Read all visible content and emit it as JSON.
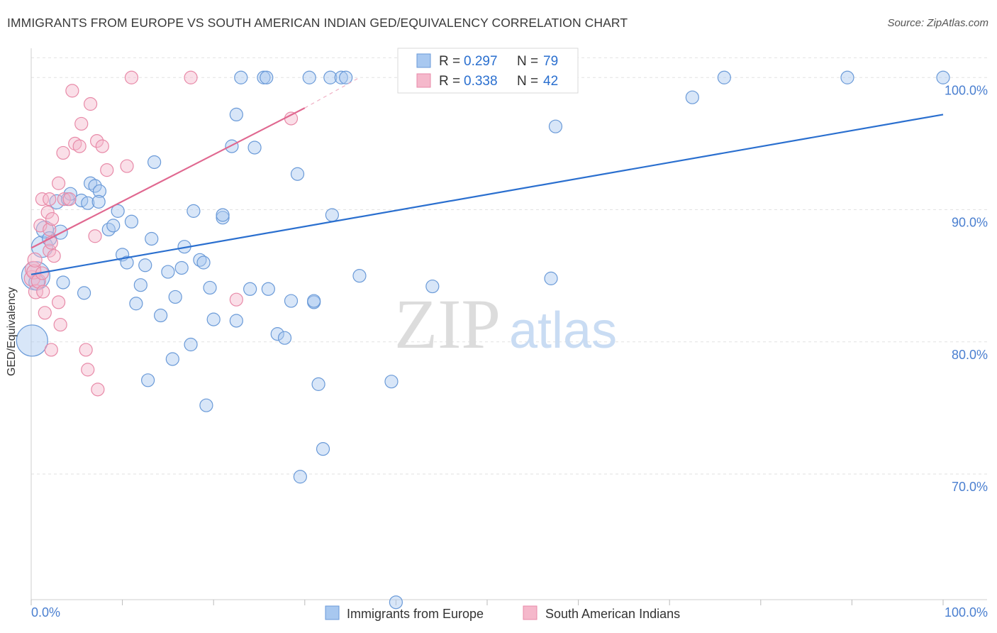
{
  "title": "IMMIGRANTS FROM EUROPE VS SOUTH AMERICAN INDIAN GED/EQUIVALENCY CORRELATION CHART",
  "source": "Source: ZipAtlas.com",
  "watermark": {
    "zip": "ZIP",
    "atlas": "atlas"
  },
  "legend_box": {
    "rows": [
      {
        "r_label": "R =",
        "r_value": "0.297",
        "n_label": "N =",
        "n_value": "79",
        "color": "#a8c8f0"
      },
      {
        "r_label": "R =",
        "r_value": "0.338",
        "n_label": "N =",
        "n_value": "42",
        "color": "#f5b8cb"
      }
    ]
  },
  "colors": {
    "blue_fill": "#a8c8f0",
    "blue_stroke": "#6a9ad8",
    "blue_line": "#2a6fcf",
    "pink_fill": "#f5b8cb",
    "pink_stroke": "#e88aa8",
    "pink_line": "#e06890",
    "axis_text": "#4a7fd0"
  },
  "chart_data": {
    "type": "scatter",
    "title": "IMMIGRANTS FROM EUROPE VS SOUTH AMERICAN INDIAN GED/EQUIVALENCY CORRELATION CHART",
    "xlabel": "",
    "ylabel": "GED/Equivalency",
    "xlim": [
      0,
      100
    ],
    "ylim": [
      60.5,
      102
    ],
    "x_tick_labels": [
      "0.0%",
      "100.0%"
    ],
    "y_ticks": [
      70,
      80,
      90,
      100
    ],
    "y_tick_labels": [
      "70.0%",
      "80.0%",
      "90.0%",
      "100.0%"
    ],
    "grid": true,
    "legend_position": "bottom",
    "series": [
      {
        "name": "Immigrants from Europe",
        "color": "#a8c8f0",
        "trend": {
          "x": [
            0,
            100
          ],
          "y": [
            85.1,
            97.2
          ]
        },
        "points": [
          [
            0.1,
            80.1
          ],
          [
            0.5,
            85.0
          ],
          [
            1.2,
            87.2
          ],
          [
            1.5,
            88.5
          ],
          [
            2.0,
            87.8
          ],
          [
            2.8,
            90.6
          ],
          [
            3.2,
            88.3
          ],
          [
            3.5,
            84.5
          ],
          [
            4.0,
            90.8
          ],
          [
            4.3,
            91.2
          ],
          [
            5.5,
            90.7
          ],
          [
            5.8,
            83.7
          ],
          [
            6.2,
            90.5
          ],
          [
            6.5,
            92.0
          ],
          [
            7.0,
            91.8
          ],
          [
            7.5,
            91.4
          ],
          [
            7.4,
            90.6
          ],
          [
            8.5,
            88.5
          ],
          [
            9.0,
            88.8
          ],
          [
            9.5,
            89.9
          ],
          [
            10.0,
            86.6
          ],
          [
            10.5,
            86.0
          ],
          [
            11.0,
            89.1
          ],
          [
            12.0,
            84.3
          ],
          [
            11.5,
            82.9
          ],
          [
            12.5,
            85.8
          ],
          [
            12.8,
            77.1
          ],
          [
            13.2,
            87.8
          ],
          [
            13.5,
            93.6
          ],
          [
            14.2,
            82.0
          ],
          [
            15.0,
            85.3
          ],
          [
            15.5,
            78.7
          ],
          [
            15.8,
            83.4
          ],
          [
            16.5,
            85.6
          ],
          [
            16.8,
            87.2
          ],
          [
            17.5,
            79.8
          ],
          [
            17.8,
            89.9
          ],
          [
            18.5,
            86.2
          ],
          [
            18.9,
            86.0
          ],
          [
            19.2,
            75.2
          ],
          [
            19.6,
            84.1
          ],
          [
            20.0,
            81.7
          ],
          [
            21.0,
            89.4
          ],
          [
            21.0,
            89.6
          ],
          [
            22.0,
            94.8
          ],
          [
            22.5,
            81.6
          ],
          [
            22.5,
            97.2
          ],
          [
            23.0,
            100.0
          ],
          [
            24.0,
            84.0
          ],
          [
            24.5,
            94.7
          ],
          [
            25.5,
            100.0
          ],
          [
            25.8,
            100.0
          ],
          [
            26.0,
            84.0
          ],
          [
            27.0,
            80.6
          ],
          [
            27.8,
            80.3
          ],
          [
            28.5,
            83.1
          ],
          [
            29.5,
            69.8
          ],
          [
            29.2,
            92.7
          ],
          [
            30.5,
            100.0
          ],
          [
            31.0,
            83.0
          ],
          [
            31.0,
            83.1
          ],
          [
            31.5,
            76.8
          ],
          [
            32.0,
            71.9
          ],
          [
            32.8,
            100.0
          ],
          [
            33.0,
            89.6
          ],
          [
            34.0,
            100.0
          ],
          [
            34.5,
            100.0
          ],
          [
            36.0,
            85.0
          ],
          [
            39.5,
            77.0
          ],
          [
            40.0,
            60.3
          ],
          [
            44.0,
            84.2
          ],
          [
            53.0,
            100.0
          ],
          [
            57.0,
            84.8
          ],
          [
            57.5,
            96.3
          ],
          [
            72.5,
            98.5
          ],
          [
            76.0,
            100.0
          ],
          [
            89.5,
            100.0
          ],
          [
            100.0,
            100.0
          ],
          [
            0.6,
            84.5
          ]
        ],
        "sizes": [
          22,
          20,
          15,
          12,
          10,
          10,
          10,
          9,
          9,
          9,
          9,
          9,
          9,
          9,
          9,
          9,
          9,
          9,
          9,
          9,
          9,
          9,
          9,
          9,
          9,
          9,
          9,
          9,
          9,
          9,
          9,
          9,
          9,
          9,
          9,
          9,
          9,
          9,
          9,
          9,
          9,
          9,
          9,
          9,
          9,
          9,
          9,
          9,
          9,
          9,
          9,
          9,
          9,
          9,
          9,
          9,
          9,
          9,
          9,
          9,
          9,
          9,
          9,
          9,
          9,
          9,
          9,
          9,
          9,
          9,
          9,
          9,
          9,
          9,
          9,
          9,
          9,
          9,
          11
        ]
      },
      {
        "name": "South American Indians",
        "color": "#f5b8cb",
        "trend": {
          "x": [
            0,
            30
          ],
          "y": [
            87.1,
            97.7
          ]
        },
        "trend_dashed_to": {
          "x": 36,
          "y": 100.0
        },
        "points": [
          [
            0.1,
            84.8
          ],
          [
            0.2,
            85.5
          ],
          [
            0.3,
            85.3
          ],
          [
            0.4,
            86.2
          ],
          [
            0.5,
            83.8
          ],
          [
            0.8,
            84.6
          ],
          [
            1.0,
            88.8
          ],
          [
            1.2,
            85.2
          ],
          [
            1.3,
            83.8
          ],
          [
            1.5,
            82.2
          ],
          [
            1.2,
            90.8
          ],
          [
            1.8,
            89.8
          ],
          [
            2.0,
            88.5
          ],
          [
            2.0,
            86.9
          ],
          [
            2.2,
            87.5
          ],
          [
            2.3,
            89.3
          ],
          [
            2.2,
            79.4
          ],
          [
            2.5,
            86.5
          ],
          [
            3.0,
            92.0
          ],
          [
            3.0,
            83.0
          ],
          [
            3.2,
            81.3
          ],
          [
            3.5,
            94.3
          ],
          [
            3.6,
            90.8
          ],
          [
            4.2,
            90.8
          ],
          [
            4.5,
            99.0
          ],
          [
            4.8,
            95.0
          ],
          [
            5.3,
            94.8
          ],
          [
            5.5,
            96.5
          ],
          [
            6.0,
            79.4
          ],
          [
            6.2,
            77.9
          ],
          [
            6.5,
            98.0
          ],
          [
            7.0,
            88.0
          ],
          [
            7.2,
            95.2
          ],
          [
            7.3,
            76.4
          ],
          [
            7.8,
            94.8
          ],
          [
            8.3,
            93.0
          ],
          [
            10.5,
            93.3
          ],
          [
            11.0,
            100.0
          ],
          [
            17.5,
            100.0
          ],
          [
            22.5,
            83.2
          ],
          [
            28.5,
            96.9
          ],
          [
            2.0,
            90.8
          ]
        ],
        "sizes": [
          11,
          11,
          10,
          10,
          10,
          10,
          9,
          9,
          9,
          9,
          9,
          9,
          9,
          9,
          9,
          9,
          9,
          9,
          9,
          9,
          9,
          9,
          9,
          9,
          9,
          9,
          9,
          9,
          9,
          9,
          9,
          9,
          9,
          9,
          9,
          9,
          9,
          9,
          9,
          9,
          9,
          9
        ]
      }
    ]
  }
}
